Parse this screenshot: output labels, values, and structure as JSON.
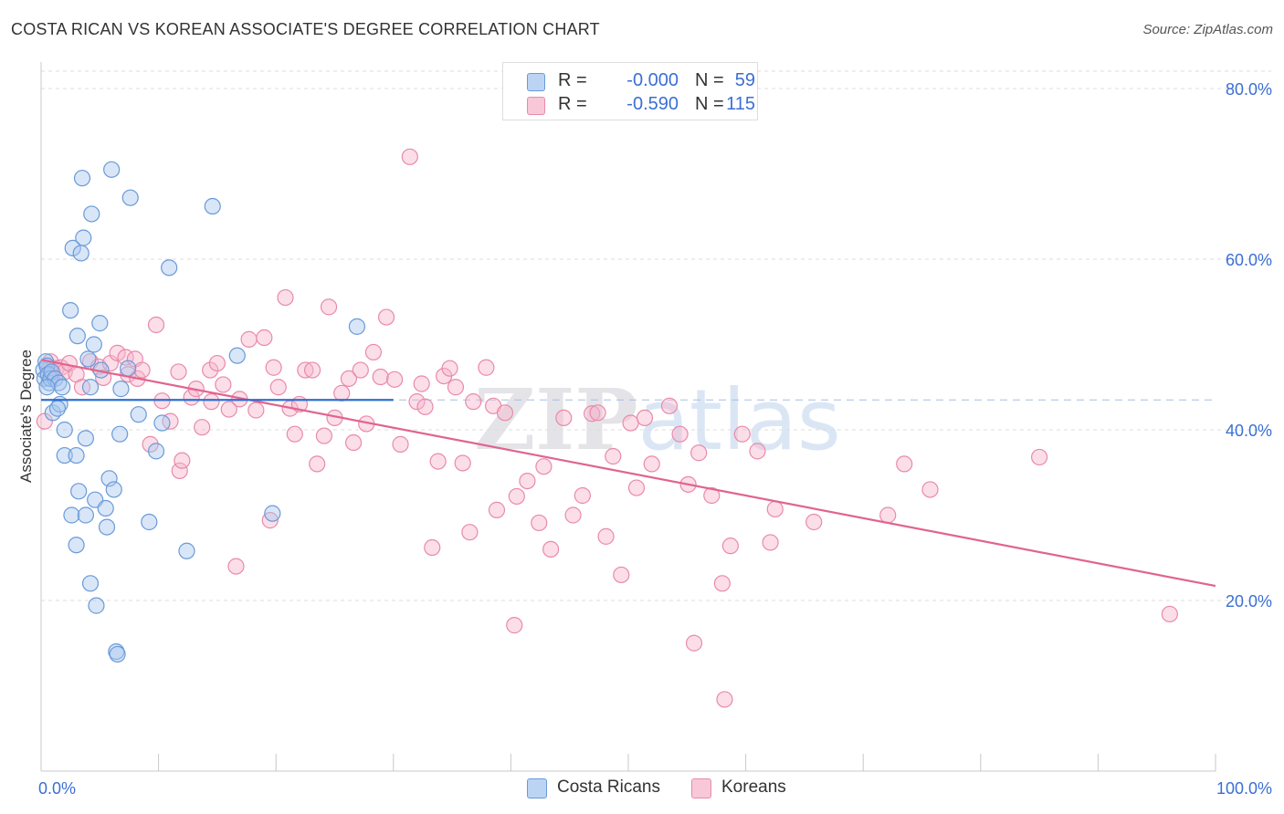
{
  "title": "COSTA RICAN VS KOREAN ASSOCIATE'S DEGREE CORRELATION CHART",
  "source": "Source: ZipAtlas.com",
  "watermark": "ZIPatlas",
  "colors": {
    "costa_rican_fill": "#a9c7f0",
    "costa_rican_stroke": "#6a9ad8",
    "costa_rican_line": "#2e6fd0",
    "korean_fill": "#f6b6cb",
    "korean_stroke": "#e98aaa",
    "korean_line": "#e0648f",
    "value_text": "#3b6fd4",
    "grid": "#dcdcdc"
  },
  "legend": {
    "rows": [
      {
        "r_label": "R =",
        "r_value": "-0.000",
        "n_label": "N =",
        "n_value": "59"
      },
      {
        "r_label": "R =",
        "r_value": "-0.590",
        "n_label": "N =",
        "n_value": "115"
      }
    ]
  },
  "bottom_legend": {
    "costa_ricans": "Costa Ricans",
    "koreans": "Koreans"
  },
  "chart_data": {
    "type": "scatter",
    "title": "COSTA RICAN VS KOREAN ASSOCIATE'S DEGREE CORRELATION CHART",
    "xlabel": "",
    "ylabel": "Associate's Degree",
    "xlim": [
      0,
      100
    ],
    "ylim": [
      0,
      80
    ],
    "x_tick_labels": [
      "0.0%",
      "100.0%"
    ],
    "y_ticks": [
      20,
      40,
      60,
      80
    ],
    "y_tick_labels": [
      "20.0%",
      "40.0%",
      "60.0%",
      "80.0%"
    ],
    "dashed_reference_y": 43.5,
    "series": [
      {
        "name": "Costa Ricans",
        "r": -0.0,
        "n": 59,
        "trend": {
          "x": [
            0,
            30
          ],
          "y": [
            43.5,
            43.5
          ]
        },
        "points": [
          [
            0.2,
            47.0
          ],
          [
            0.3,
            46.0
          ],
          [
            0.4,
            48.0
          ],
          [
            0.5,
            47.5
          ],
          [
            0.6,
            46.5
          ],
          [
            0.7,
            45.5
          ],
          [
            0.8,
            46.0
          ],
          [
            0.9,
            46.8
          ],
          [
            1.0,
            42.0
          ],
          [
            1.2,
            46.0
          ],
          [
            1.5,
            45.5
          ],
          [
            1.6,
            43.0
          ],
          [
            1.4,
            42.5
          ],
          [
            1.8,
            45.0
          ],
          [
            2.0,
            40.0
          ],
          [
            2.0,
            37.0
          ],
          [
            2.5,
            54.0
          ],
          [
            2.7,
            61.3
          ],
          [
            2.6,
            30.0
          ],
          [
            3.0,
            37.0
          ],
          [
            3.0,
            26.5
          ],
          [
            3.2,
            32.8
          ],
          [
            3.1,
            51.0
          ],
          [
            3.4,
            60.7
          ],
          [
            3.5,
            69.5
          ],
          [
            3.6,
            62.5
          ],
          [
            3.8,
            30.0
          ],
          [
            3.8,
            39.0
          ],
          [
            4.0,
            48.3
          ],
          [
            4.2,
            45.0
          ],
          [
            4.2,
            22.0
          ],
          [
            4.3,
            65.3
          ],
          [
            4.5,
            50.0
          ],
          [
            4.6,
            31.8
          ],
          [
            4.7,
            19.4
          ],
          [
            5.0,
            52.5
          ],
          [
            5.1,
            47.0
          ],
          [
            5.5,
            30.8
          ],
          [
            5.6,
            28.6
          ],
          [
            5.8,
            34.3
          ],
          [
            6.0,
            70.5
          ],
          [
            6.2,
            33.0
          ],
          [
            6.4,
            14.0
          ],
          [
            6.5,
            13.7
          ],
          [
            6.7,
            39.5
          ],
          [
            6.8,
            44.8
          ],
          [
            7.4,
            47.2
          ],
          [
            7.6,
            67.2
          ],
          [
            8.3,
            41.8
          ],
          [
            9.2,
            29.2
          ],
          [
            9.8,
            37.5
          ],
          [
            10.3,
            40.8
          ],
          [
            10.9,
            59.0
          ],
          [
            12.4,
            25.8
          ],
          [
            14.6,
            66.2
          ],
          [
            16.7,
            48.7
          ],
          [
            19.7,
            30.2
          ],
          [
            26.9,
            52.1
          ],
          [
            0.5,
            45.0
          ]
        ]
      },
      {
        "name": "Koreans",
        "r": -0.59,
        "n": 115,
        "trend": {
          "x": [
            0,
            100
          ],
          "y": [
            48.2,
            21.7
          ]
        },
        "points": [
          [
            0.3,
            41.0
          ],
          [
            0.5,
            47.5
          ],
          [
            0.6,
            47.0
          ],
          [
            0.8,
            48.0
          ],
          [
            1.0,
            46.5
          ],
          [
            1.3,
            47.2
          ],
          [
            1.7,
            47.3
          ],
          [
            2.0,
            46.8
          ],
          [
            2.4,
            47.8
          ],
          [
            3.0,
            46.5
          ],
          [
            3.5,
            45.0
          ],
          [
            4.2,
            48.0
          ],
          [
            4.9,
            47.4
          ],
          [
            5.3,
            46.1
          ],
          [
            5.9,
            47.8
          ],
          [
            6.5,
            49.0
          ],
          [
            7.2,
            48.5
          ],
          [
            7.4,
            46.5
          ],
          [
            8.0,
            48.3
          ],
          [
            8.2,
            46.0
          ],
          [
            8.6,
            47.0
          ],
          [
            9.3,
            38.3
          ],
          [
            9.8,
            52.3
          ],
          [
            10.3,
            43.4
          ],
          [
            11.0,
            41.0
          ],
          [
            11.7,
            46.8
          ],
          [
            11.8,
            35.2
          ],
          [
            12.0,
            36.4
          ],
          [
            12.8,
            43.8
          ],
          [
            13.2,
            44.8
          ],
          [
            13.7,
            40.3
          ],
          [
            14.4,
            47.0
          ],
          [
            14.5,
            43.3
          ],
          [
            15.0,
            47.8
          ],
          [
            15.5,
            45.3
          ],
          [
            16.0,
            42.4
          ],
          [
            16.6,
            24.0
          ],
          [
            16.9,
            43.6
          ],
          [
            17.7,
            50.6
          ],
          [
            18.3,
            42.3
          ],
          [
            19.0,
            50.8
          ],
          [
            19.5,
            29.4
          ],
          [
            19.8,
            47.3
          ],
          [
            20.2,
            45.0
          ],
          [
            20.8,
            55.5
          ],
          [
            21.2,
            42.5
          ],
          [
            21.6,
            39.5
          ],
          [
            22.0,
            43.0
          ],
          [
            22.5,
            47.0
          ],
          [
            23.1,
            47.0
          ],
          [
            23.5,
            36.0
          ],
          [
            24.1,
            39.3
          ],
          [
            24.5,
            54.4
          ],
          [
            25.0,
            41.4
          ],
          [
            25.6,
            44.3
          ],
          [
            26.2,
            46.0
          ],
          [
            26.6,
            38.5
          ],
          [
            27.2,
            47.0
          ],
          [
            27.7,
            40.7
          ],
          [
            28.3,
            49.1
          ],
          [
            28.9,
            46.2
          ],
          [
            29.4,
            53.2
          ],
          [
            30.1,
            45.9
          ],
          [
            30.6,
            38.3
          ],
          [
            31.4,
            72.0
          ],
          [
            32.0,
            43.3
          ],
          [
            32.4,
            45.4
          ],
          [
            32.7,
            42.7
          ],
          [
            33.3,
            26.2
          ],
          [
            33.8,
            36.3
          ],
          [
            34.3,
            46.3
          ],
          [
            34.8,
            47.2
          ],
          [
            35.3,
            45.0
          ],
          [
            35.9,
            36.1
          ],
          [
            36.5,
            28.0
          ],
          [
            36.8,
            43.3
          ],
          [
            37.9,
            47.3
          ],
          [
            38.5,
            42.8
          ],
          [
            38.8,
            30.6
          ],
          [
            39.5,
            42.0
          ],
          [
            40.3,
            17.1
          ],
          [
            40.5,
            32.2
          ],
          [
            41.4,
            34.0
          ],
          [
            42.4,
            29.1
          ],
          [
            42.8,
            35.7
          ],
          [
            43.4,
            26.0
          ],
          [
            44.5,
            41.4
          ],
          [
            45.3,
            30.0
          ],
          [
            46.1,
            32.3
          ],
          [
            46.9,
            41.9
          ],
          [
            47.4,
            42.0
          ],
          [
            48.1,
            27.5
          ],
          [
            48.7,
            36.9
          ],
          [
            49.4,
            23.0
          ],
          [
            50.2,
            40.8
          ],
          [
            50.7,
            33.2
          ],
          [
            51.4,
            41.4
          ],
          [
            52.0,
            36.0
          ],
          [
            53.5,
            42.8
          ],
          [
            54.4,
            39.5
          ],
          [
            55.1,
            33.6
          ],
          [
            55.6,
            15.0
          ],
          [
            56.0,
            37.3
          ],
          [
            57.1,
            32.3
          ],
          [
            58.2,
            8.4
          ],
          [
            58.7,
            26.4
          ],
          [
            58.0,
            22.0
          ],
          [
            59.7,
            39.5
          ],
          [
            61.0,
            37.5
          ],
          [
            62.1,
            26.8
          ],
          [
            62.5,
            30.7
          ],
          [
            65.8,
            29.2
          ],
          [
            72.1,
            30.0
          ],
          [
            73.5,
            36.0
          ],
          [
            75.7,
            33.0
          ],
          [
            85.0,
            36.8
          ],
          [
            96.1,
            18.4
          ]
        ]
      }
    ]
  }
}
